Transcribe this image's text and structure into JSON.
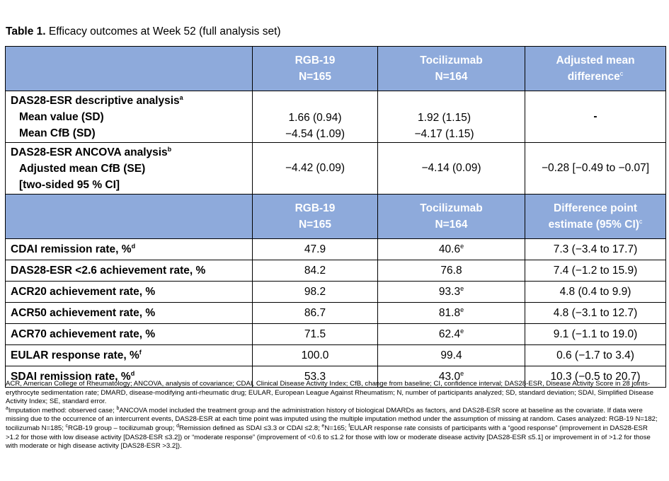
{
  "title": {
    "bold": "Table 1.",
    "text": " Efficacy outcomes at Week 52 (full analysis set)"
  },
  "header1": {
    "col2_line1": "RGB-19",
    "col2_line2": "N=165",
    "col3_line1": "Tocilizumab",
    "col3_line2": "N=164",
    "col4_line1": "Adjusted mean",
    "col4_line2": "difference",
    "col4_sup": "c"
  },
  "descriptive": {
    "heading": "DAS28-ESR descriptive analysis",
    "heading_sup": "a",
    "mean_label": "Mean value (SD)",
    "cfb_label": "Mean CfB (SD)",
    "rgb_mean": "1.66 (0.94)",
    "rgb_cfb": "−4.54 (1.09)",
    "toc_mean": "1.92 (1.15)",
    "toc_cfb": "−4.17 (1.15)",
    "diff": "-"
  },
  "ancova": {
    "heading": "DAS28-ESR ANCOVA analysis",
    "heading_sup": "b",
    "label1": "Adjusted mean CfB (SE)",
    "label2": "[two-sided 95 % CI]",
    "rgb": "−4.42 (0.09)",
    "toc": "−4.14 (0.09)",
    "diff": "−0.28 [−0.49 to −0.07]"
  },
  "header2": {
    "col2_line1": "RGB-19",
    "col2_line2": "N=165",
    "col3_line1": "Tocilizumab",
    "col3_line2": "N=164",
    "col4_line1": "Difference point",
    "col4_line2": "estimate (95% CI)",
    "col4_sup": "c"
  },
  "rows": [
    {
      "label": "CDAI remission rate, %",
      "label_sup": "d",
      "rgb": "47.9",
      "toc": "40.6",
      "toc_sup": "e",
      "diff": "7.3 (−3.4 to 17.7)"
    },
    {
      "label": "DAS28-ESR <2.6 achievement rate, %",
      "label_sup": "",
      "rgb": "84.2",
      "toc": "76.8",
      "toc_sup": "",
      "diff": "7.4 (−1.2 to 15.9)"
    },
    {
      "label": "ACR20 achievement rate, %",
      "label_sup": "",
      "rgb": "98.2",
      "toc": "93.3",
      "toc_sup": "e",
      "diff": "4.8 (0.4 to 9.9)"
    },
    {
      "label": "ACR50 achievement rate, %",
      "label_sup": "",
      "rgb": "86.7",
      "toc": "81.8",
      "toc_sup": "e",
      "diff": "4.8 (−3.1 to 12.7)"
    },
    {
      "label": "ACR70 achievement rate, %",
      "label_sup": "",
      "rgb": "71.5",
      "toc": "62.4",
      "toc_sup": "e",
      "diff": "9.1 (−1.1 to 19.0)"
    },
    {
      "label": "EULAR response rate, %",
      "label_sup": "f",
      "rgb": "100.0",
      "toc": "99.4",
      "toc_sup": "",
      "diff": "0.6 (−1.7 to 3.4)"
    },
    {
      "label": "SDAI remission rate, %",
      "label_sup": "d",
      "rgb": "53.3",
      "toc": "43.0",
      "toc_sup": "e",
      "diff": "10.3 (−0.5 to 20.7)"
    }
  ],
  "footnotes": {
    "abbrev": "ACR, American College of Rheumatology; ANCOVA, analysis of covariance; CDAI, Clinical Disease Activity Index; CfB, change from baseline; CI, confidence interval; DAS28-ESR, Disease Activity Score in 28 joints-erythrocyte sedimentation rate; DMARD, disease-modifying anti-rheumatic drug; EULAR, European League Against Rheumatism; N, number of participants analyzed; SD, standard deviation; SDAI, Simplified Disease Activity Index; SE, standard error.",
    "sup_a": "a",
    "note_a": "Imputation method: observed case; ",
    "sup_b": "b",
    "note_b": "ANCOVA model included the treatment group and the administration history of biological DMARDs as factors, and DAS28-ESR score at baseline as the covariate. If data were missing due to the occurrence of an intercurrent events, DAS28-ESR at each time point was imputed using the multiple imputation method under the assumption of missing at random. Cases analyzed: RGB-19 N=182; tocilizumab N=185; ",
    "sup_c": "c",
    "note_c": "RGB-19 group – tocilizumab group; ",
    "sup_d": "d",
    "note_d": "Remission defined as SDAI ≤3.3 or CDAI ≤2.8; ",
    "sup_e": "e",
    "note_e": "N=165; ",
    "sup_f": "f",
    "note_f": "EULAR response rate consists of participants with a “good response” (improvement in DAS28-ESR >1.2 for those with low disease activity [DAS28-ESR ≤3.2]) or “moderate response” (improvement of <0.6 to ≤1.2 for those with low or moderate disease activity [DAS28-ESR ≤5.1] or improvement in of >1.2 for those with moderate or high disease activity [DAS28-ESR >3.2])."
  }
}
